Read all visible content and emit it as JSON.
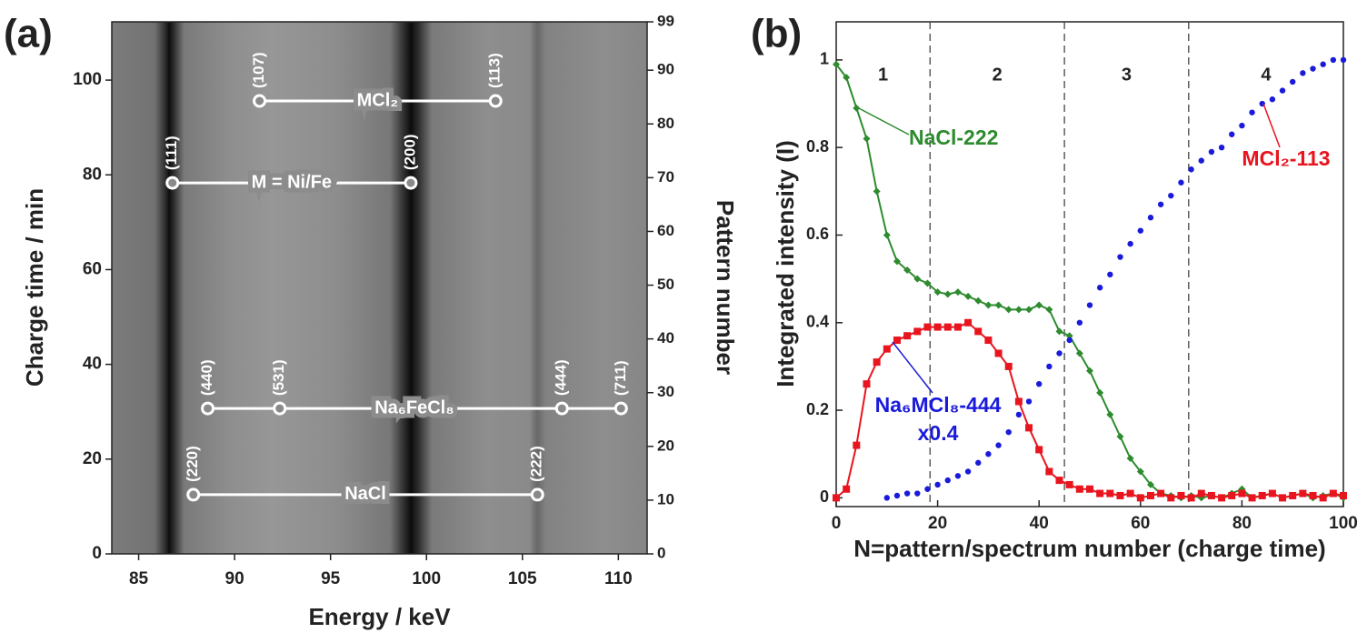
{
  "chart_data": [
    {
      "type": "image",
      "panel": "(a)",
      "xlabel": "Energy / keV",
      "ylabel": "Charge time / min",
      "y2label": "Pattern number",
      "xlim": [
        83.6,
        111.5
      ],
      "xticks": [
        85,
        90,
        95,
        100,
        105,
        110
      ],
      "ylim": [
        0,
        112.3
      ],
      "yticks": [
        0,
        20,
        40,
        60,
        80,
        100
      ],
      "y2lim": [
        0,
        99
      ],
      "y2ticks": [
        0,
        10,
        20,
        30,
        40,
        50,
        60,
        70,
        80,
        90,
        99
      ],
      "annotations": [
        {
          "label": "MCl₂",
          "y": 95.6,
          "markers": [
            {
              "x": 91.3,
              "label": "(107)"
            },
            {
              "x": 103.6,
              "label": "(113)"
            }
          ]
        },
        {
          "label": "M = Ni/Fe",
          "y": 78.3,
          "markers": [
            {
              "x": 86.76,
              "label": "(111)"
            },
            {
              "x": 99.18,
              "label": "(200)"
            }
          ]
        },
        {
          "label": "Na₆FeCl₈",
          "y": 30.7,
          "markers": [
            {
              "x": 88.6,
              "label": "(440)"
            },
            {
              "x": 92.35,
              "label": "(531)"
            },
            {
              "x": 107.06,
              "label": "(444)"
            },
            {
              "x": 110.14,
              "label": "(711)"
            }
          ]
        },
        {
          "label": "NaCl",
          "y": 12.5,
          "markers": [
            {
              "x": 87.85,
              "label": "(220)"
            },
            {
              "x": 105.78,
              "label": "(222)"
            }
          ]
        }
      ]
    },
    {
      "type": "line",
      "panel": "(b)",
      "xlabel": "N=pattern/spectrum number (charge time)",
      "ylabel": "Integrated intensity (I)",
      "xlim": [
        0,
        100
      ],
      "xticks": [
        0,
        20,
        40,
        60,
        80,
        100
      ],
      "ylim": [
        -0.02,
        1.087
      ],
      "yticks": [
        0,
        0.2,
        0.4,
        0.6,
        0.8,
        1
      ],
      "vlines": [
        18.5,
        45,
        69.5
      ],
      "regions": [
        "1",
        "2",
        "3",
        "4"
      ],
      "series": [
        {
          "name": "NaCl-222",
          "color": "#2e8b2e",
          "marker": "diamond",
          "line": true,
          "x": [
            0,
            2,
            4,
            6,
            8,
            10,
            12,
            14,
            16,
            18,
            20,
            22,
            24,
            26,
            28,
            30,
            32,
            34,
            36,
            38,
            40,
            42,
            44,
            46,
            48,
            50,
            52,
            54,
            56,
            58,
            60,
            62,
            64,
            66,
            68,
            70,
            72,
            74,
            76,
            78,
            80,
            82,
            84,
            86,
            88,
            90,
            92,
            94,
            96,
            98,
            100
          ],
          "values": [
            0.99,
            0.96,
            0.89,
            0.82,
            0.7,
            0.6,
            0.54,
            0.52,
            0.5,
            0.49,
            0.47,
            0.465,
            0.47,
            0.46,
            0.45,
            0.44,
            0.44,
            0.43,
            0.43,
            0.43,
            0.44,
            0.43,
            0.38,
            0.37,
            0.33,
            0.29,
            0.24,
            0.19,
            0.14,
            0.09,
            0.06,
            0.03,
            0.01,
            0.005,
            0,
            0.005,
            0,
            0.005,
            0,
            0.01,
            0.02,
            0,
            0.005,
            0.01,
            0,
            0.005,
            0.01,
            0,
            0.005,
            0.01,
            0
          ]
        },
        {
          "name": "Na₆MCl₈-444 x0.4",
          "color": "#e8141e",
          "marker": "square",
          "line": true,
          "x": [
            0,
            2,
            4,
            6,
            8,
            10,
            12,
            14,
            16,
            18,
            20,
            22,
            24,
            26,
            28,
            30,
            32,
            34,
            36,
            38,
            40,
            42,
            44,
            46,
            48,
            50,
            52,
            54,
            56,
            58,
            60,
            62,
            64,
            66,
            68,
            70,
            72,
            74,
            76,
            78,
            80,
            82,
            84,
            86,
            88,
            90,
            92,
            94,
            96,
            98,
            100
          ],
          "values": [
            0,
            0.02,
            0.12,
            0.26,
            0.31,
            0.34,
            0.36,
            0.37,
            0.38,
            0.39,
            0.39,
            0.39,
            0.39,
            0.4,
            0.38,
            0.36,
            0.33,
            0.3,
            0.22,
            0.16,
            0.11,
            0.06,
            0.04,
            0.03,
            0.02,
            0.02,
            0.01,
            0.01,
            0.005,
            0.01,
            0,
            0.005,
            0.01,
            0,
            0.005,
            0,
            0.01,
            0.005,
            0,
            0.005,
            0.01,
            0,
            0.005,
            0.01,
            0,
            0.005,
            0.01,
            0.005,
            0,
            0.01,
            0.005
          ]
        },
        {
          "name": "MCl₂-113",
          "color": "#1a1adb",
          "marker": "circle",
          "line": false,
          "x": [
            10,
            12,
            14,
            16,
            18,
            20,
            22,
            24,
            26,
            28,
            30,
            32,
            34,
            36,
            38,
            40,
            42,
            44,
            46,
            48,
            50,
            52,
            54,
            56,
            58,
            60,
            62,
            64,
            66,
            68,
            70,
            72,
            74,
            76,
            78,
            80,
            82,
            84,
            86,
            88,
            90,
            92,
            94,
            96,
            98,
            100
          ],
          "values": [
            0,
            0.005,
            0.01,
            0.01,
            0.02,
            0.03,
            0.04,
            0.05,
            0.06,
            0.08,
            0.1,
            0.12,
            0.15,
            0.19,
            0.22,
            0.26,
            0.3,
            0.33,
            0.36,
            0.4,
            0.44,
            0.48,
            0.51,
            0.55,
            0.58,
            0.61,
            0.64,
            0.67,
            0.69,
            0.72,
            0.75,
            0.77,
            0.79,
            0.8,
            0.83,
            0.85,
            0.88,
            0.9,
            0.91,
            0.93,
            0.95,
            0.97,
            0.98,
            0.99,
            1.0,
            1.0
          ]
        }
      ],
      "annotations": [
        [
          "NaCl-222"
        ],
        [
          "MCl₂-113"
        ],
        [
          "Na₆MCl₈-444",
          "x0.4"
        ]
      ]
    }
  ]
}
